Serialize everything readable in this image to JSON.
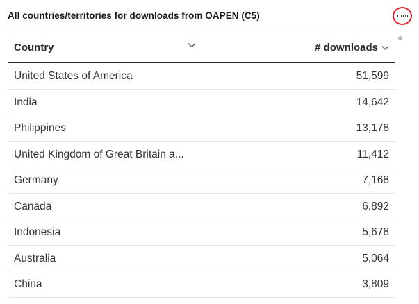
{
  "widget": {
    "title": "All countries/territories for downloads from OAPEN (C5)"
  },
  "table": {
    "headers": {
      "country": "Country",
      "downloads": "# downloads"
    },
    "rows": [
      {
        "country": "United States of America",
        "downloads": "51,599"
      },
      {
        "country": "India",
        "downloads": "14,642"
      },
      {
        "country": "Philippines",
        "downloads": "13,178"
      },
      {
        "country": "United Kingdom of Great Britain a...",
        "downloads": "11,412"
      },
      {
        "country": "Germany",
        "downloads": "7,168"
      },
      {
        "country": "Canada",
        "downloads": "6,892"
      },
      {
        "country": "Indonesia",
        "downloads": "5,678"
      },
      {
        "country": "Australia",
        "downloads": "5,064"
      },
      {
        "country": "China",
        "downloads": "3,809"
      }
    ]
  },
  "colors": {
    "highlight_ring": "#e3242b",
    "header_rule": "#2b2b2b",
    "row_rule": "#e6e6e6"
  },
  "icons": {
    "more": "more-options-icon",
    "sort": "chevron-down-icon"
  }
}
